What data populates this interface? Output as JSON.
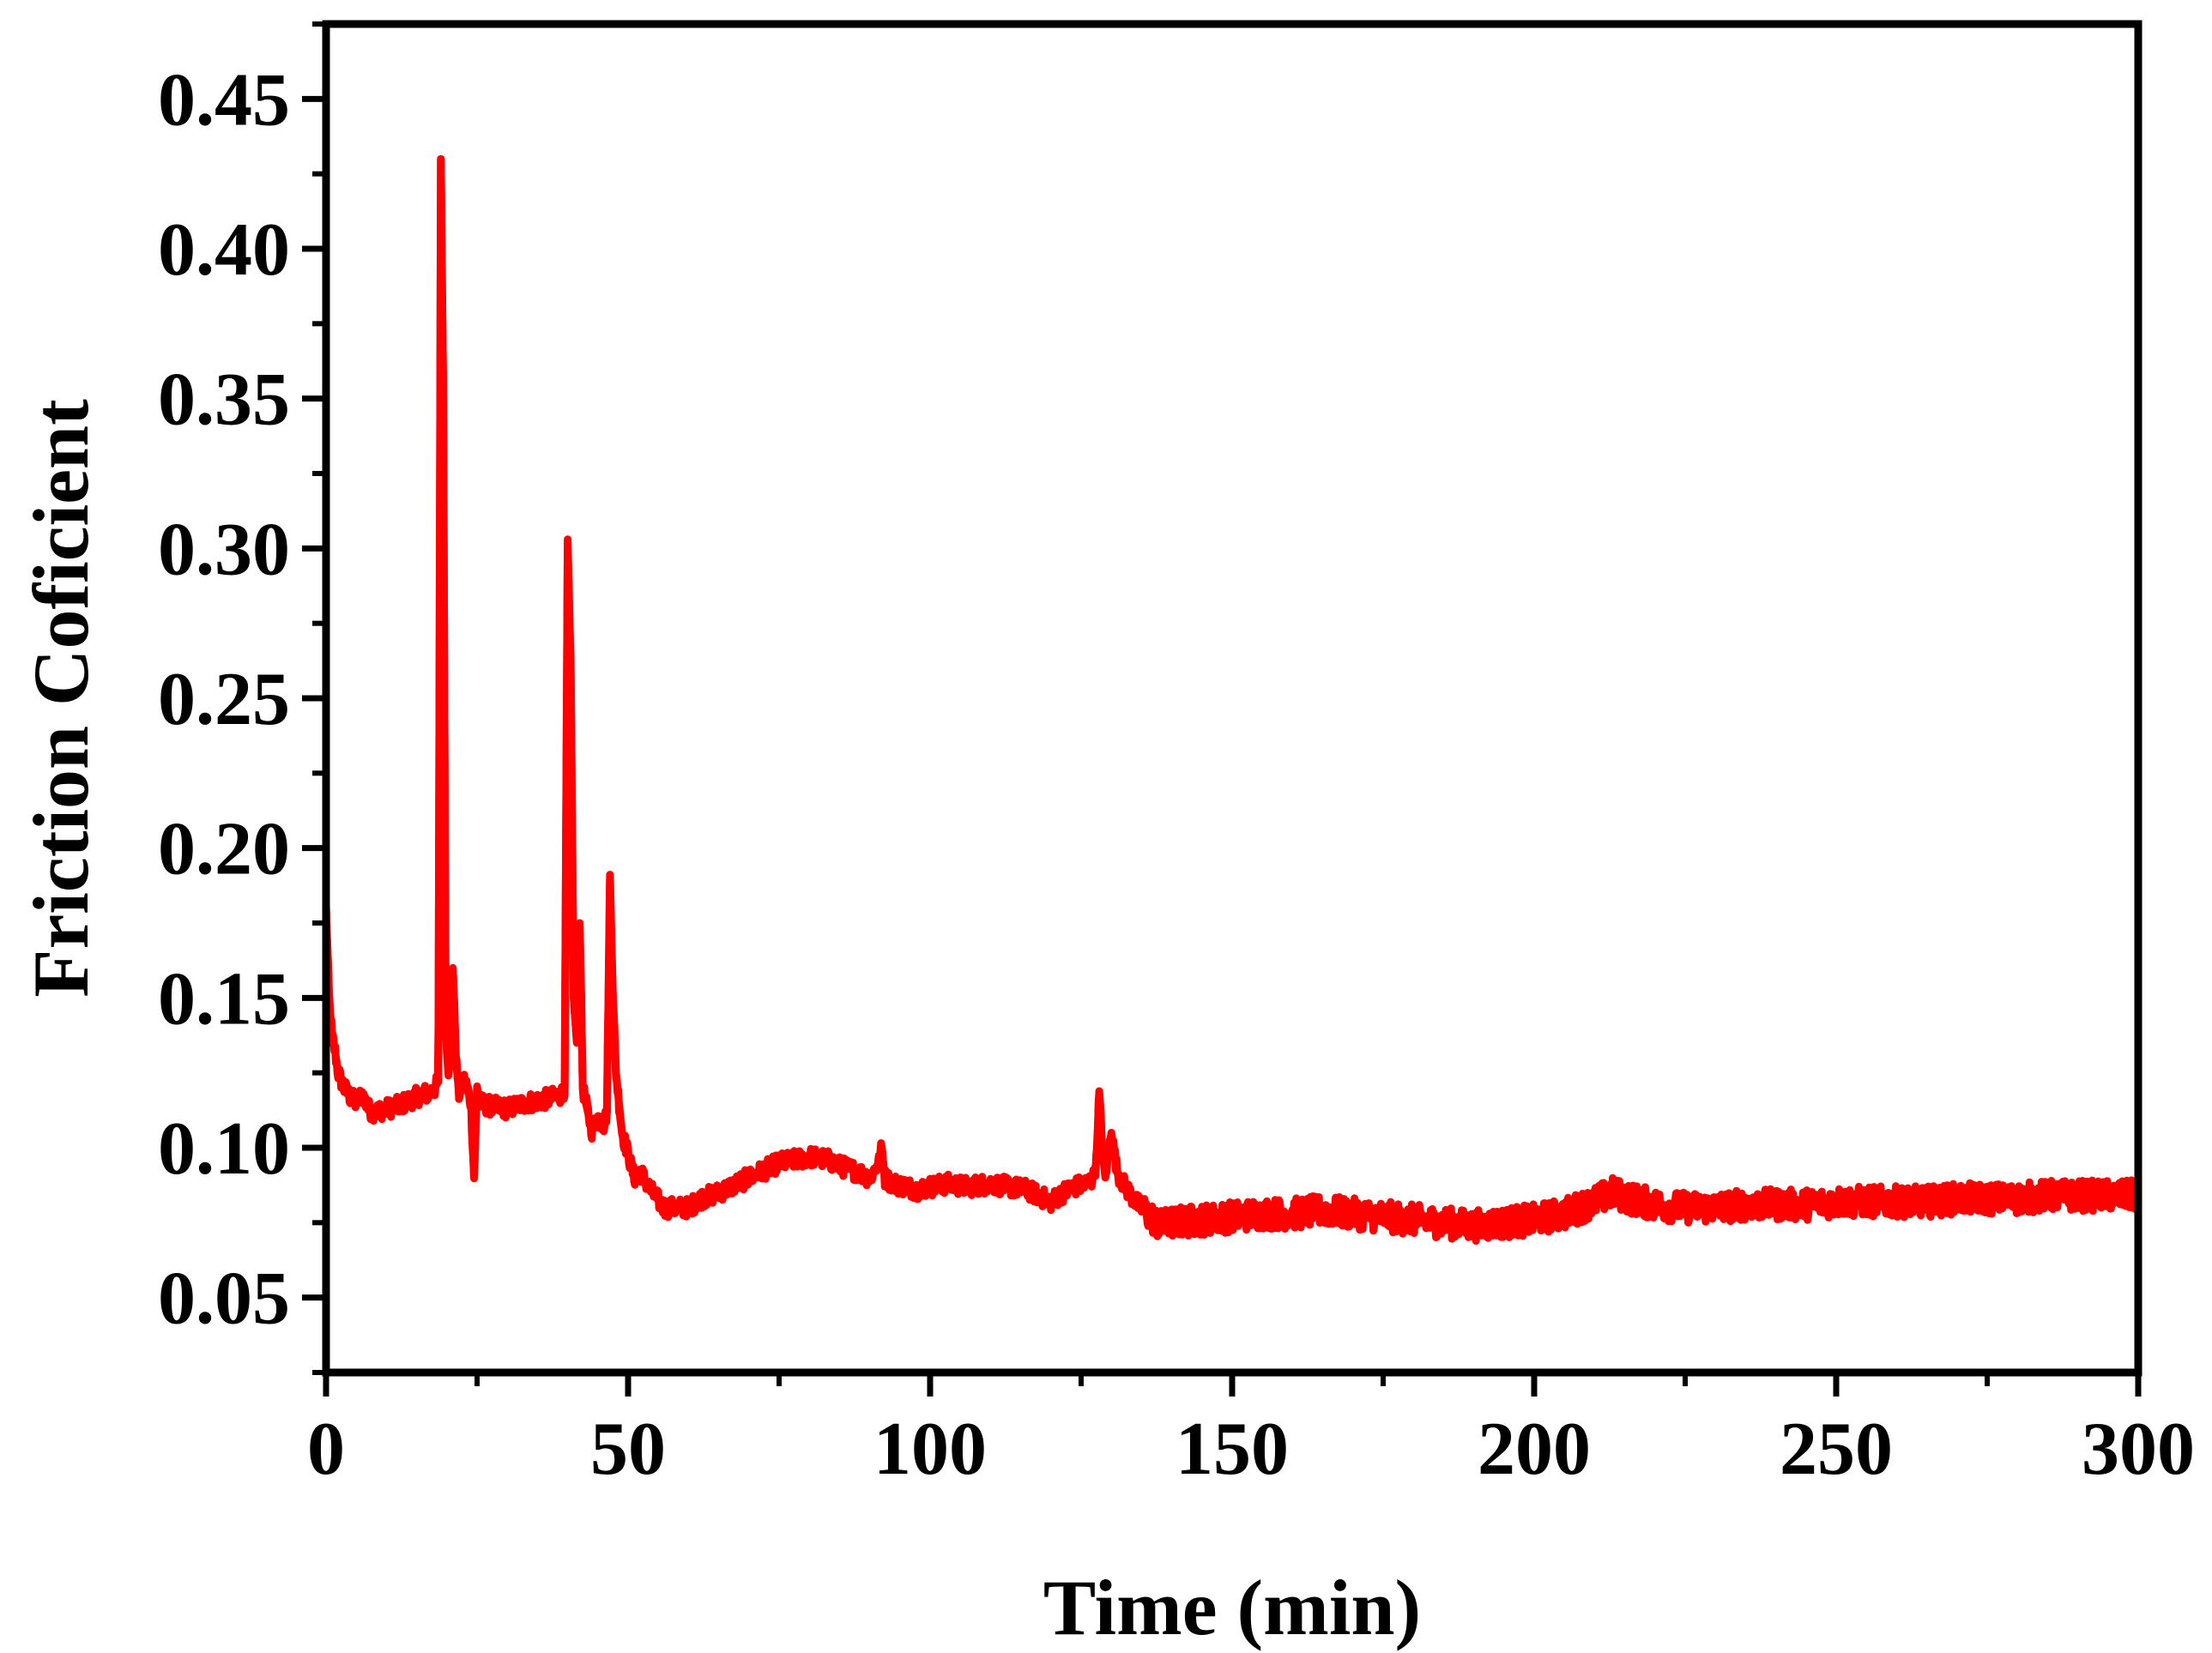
{
  "chart_data": {
    "type": "line",
    "title": "",
    "xlabel": "Time (min)",
    "ylabel": "Friction Coficient",
    "xlim": [
      0,
      300
    ],
    "ylim": [
      0.025,
      0.475
    ],
    "xticks": [
      0,
      50,
      100,
      150,
      200,
      250,
      300
    ],
    "xtick_labels": [
      "0",
      "50",
      "100",
      "150",
      "200",
      "250",
      "300"
    ],
    "yticks": [
      0.05,
      0.1,
      0.15,
      0.2,
      0.25,
      0.3,
      0.35,
      0.4,
      0.45
    ],
    "ytick_labels": [
      "0.05",
      "0.10",
      "0.15",
      "0.20",
      "0.25",
      "0.30",
      "0.35",
      "0.40",
      "0.45"
    ],
    "grid": false,
    "legend": "none",
    "series": [
      {
        "name": "Friction coefficient",
        "color": "#ff0000",
        "x": [
          0,
          0.5,
          1,
          1.5,
          2,
          3,
          4,
          5,
          6,
          7,
          8,
          10,
          12,
          14,
          16,
          17,
          18,
          18.6,
          19,
          19.4,
          19.8,
          20.3,
          21,
          21.5,
          22,
          23,
          24,
          24.5,
          25,
          25.5,
          27,
          30,
          33,
          36,
          38,
          39,
          39.5,
          40,
          40.5,
          41,
          41.5,
          42,
          42.5,
          43,
          44,
          45,
          46,
          46.5,
          47,
          47.5,
          48,
          48.5,
          49,
          50,
          51,
          52,
          54,
          56,
          58,
          60,
          62,
          65,
          68,
          70,
          72,
          75,
          78,
          80,
          83,
          85,
          88,
          90,
          91.5,
          92,
          92.5,
          94,
          96,
          98,
          100,
          103,
          106,
          110,
          113,
          116,
          118,
          120,
          122,
          124,
          126,
          127,
          127.5,
          128,
          128.5,
          129,
          129.5,
          130,
          131,
          132,
          133,
          134,
          136,
          138,
          140,
          145,
          150,
          155,
          160,
          165,
          170,
          175,
          180,
          185,
          190,
          195,
          200,
          205,
          210,
          213,
          216,
          220,
          225,
          230,
          235,
          240,
          245,
          250,
          255,
          260,
          265,
          270,
          275,
          280,
          285,
          290,
          295,
          300
        ],
        "y": [
          0.18,
          0.15,
          0.137,
          0.132,
          0.125,
          0.12,
          0.117,
          0.115,
          0.118,
          0.113,
          0.112,
          0.113,
          0.114,
          0.116,
          0.118,
          0.118,
          0.12,
          0.122,
          0.43,
          0.35,
          0.14,
          0.125,
          0.16,
          0.13,
          0.118,
          0.123,
          0.115,
          0.09,
          0.12,
          0.115,
          0.114,
          0.113,
          0.115,
          0.116,
          0.117,
          0.118,
          0.12,
          0.3,
          0.26,
          0.15,
          0.135,
          0.175,
          0.12,
          0.115,
          0.106,
          0.11,
          0.108,
          0.112,
          0.19,
          0.15,
          0.125,
          0.115,
          0.105,
          0.098,
          0.09,
          0.092,
          0.085,
          0.08,
          0.08,
          0.08,
          0.083,
          0.085,
          0.088,
          0.09,
          0.092,
          0.095,
          0.096,
          0.097,
          0.096,
          0.094,
          0.092,
          0.09,
          0.095,
          0.1,
          0.09,
          0.088,
          0.087,
          0.086,
          0.087,
          0.088,
          0.087,
          0.088,
          0.087,
          0.086,
          0.084,
          0.082,
          0.085,
          0.087,
          0.088,
          0.09,
          0.095,
          0.118,
          0.1,
          0.09,
          0.098,
          0.105,
          0.092,
          0.088,
          0.085,
          0.082,
          0.078,
          0.074,
          0.075,
          0.076,
          0.077,
          0.078,
          0.078,
          0.079,
          0.078,
          0.077,
          0.076,
          0.075,
          0.074,
          0.075,
          0.076,
          0.078,
          0.082,
          0.085,
          0.083,
          0.081,
          0.08,
          0.08,
          0.081,
          0.081,
          0.081,
          0.082,
          0.082,
          0.082,
          0.082,
          0.083,
          0.083,
          0.083,
          0.084,
          0.084,
          0.084,
          0.084
        ],
        "noise_amplitude": 0.004
      }
    ]
  }
}
